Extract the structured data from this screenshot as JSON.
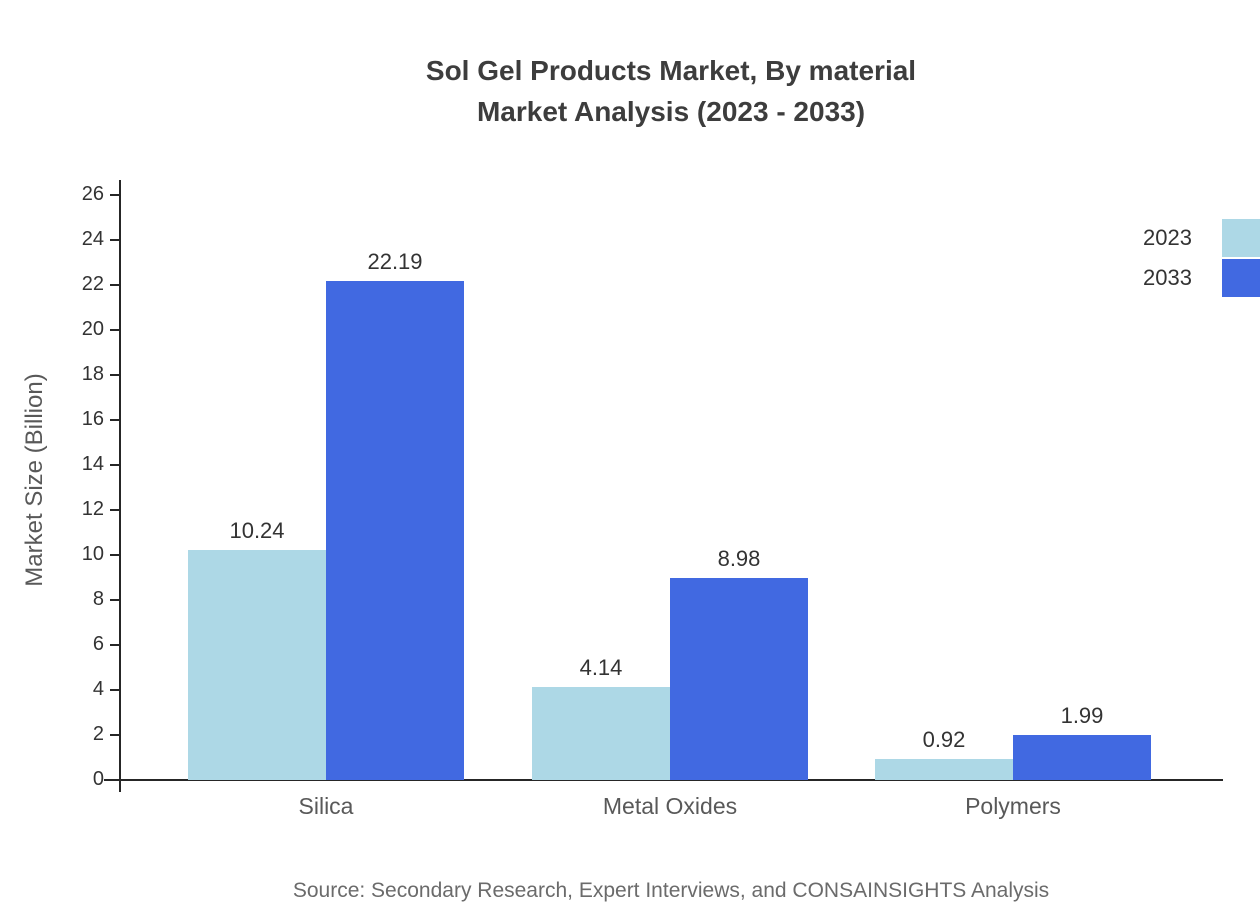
{
  "title": {
    "line1": "Sol Gel Products Market, By material",
    "line2": "Market Analysis (2023 - 2033)"
  },
  "source": "Source: Secondary Research, Expert Interviews, and CONSAINSIGHTS Analysis",
  "chart_data": {
    "type": "bar",
    "title": "Sol Gel Products Market, By material Market Analysis (2023 - 2033)",
    "categories": [
      "Silica",
      "Metal Oxides",
      "Polymers"
    ],
    "series": [
      {
        "name": "2023",
        "color": "#ADD8E6",
        "values": [
          10.24,
          4.14,
          0.92
        ]
      },
      {
        "name": "2033",
        "color": "#4169E1",
        "values": [
          22.19,
          8.98,
          1.99
        ]
      }
    ],
    "xlabel": "",
    "ylabel": "Market Size (Billion)",
    "ylim": [
      0,
      26
    ],
    "ytick_step": 2,
    "grid": false,
    "legend_position": "top-right"
  }
}
